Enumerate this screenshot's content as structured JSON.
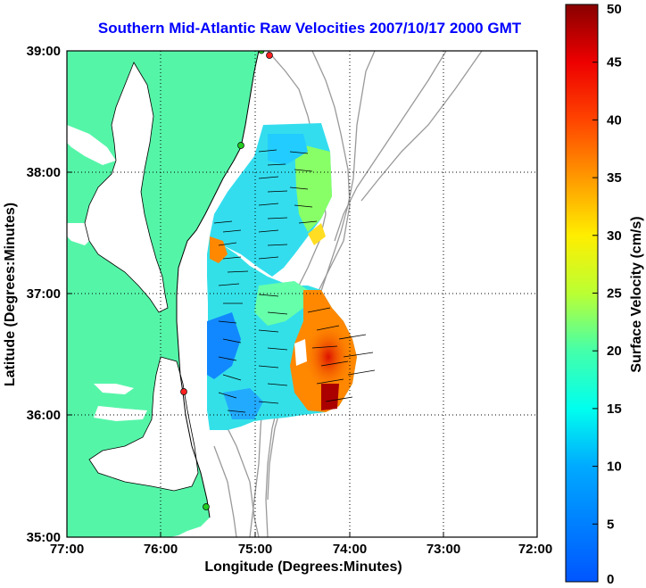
{
  "title": "Southern Mid-Atlantic Raw Velocities 2007/10/17 2000 GMT",
  "xlabel": "Longitude (Degrees:Minutes)",
  "ylabel": "Latitude (Degrees:Minutes)",
  "x_ticks": [
    "77:00",
    "76:00",
    "75:00",
    "74:00",
    "73:00",
    "72:00"
  ],
  "y_ticks": [
    "39:00",
    "38:00",
    "37:00",
    "36:00",
    "35:00"
  ],
  "colorbar": {
    "label": "Surface Velocity (cm/s)",
    "ticks": [
      "0",
      "5",
      "10",
      "15",
      "20",
      "25",
      "30",
      "35",
      "40",
      "45",
      "50"
    ],
    "range": [
      0,
      50
    ]
  },
  "colors": {
    "land": "#55f5a8",
    "title": "#0000ff",
    "bathymetry": "#999999",
    "station_red": "#ff2020",
    "station_green": "#22cc22"
  },
  "map": {
    "lon_range": [
      -77,
      -72
    ],
    "lat_range": [
      35,
      39
    ],
    "grid": true
  }
}
